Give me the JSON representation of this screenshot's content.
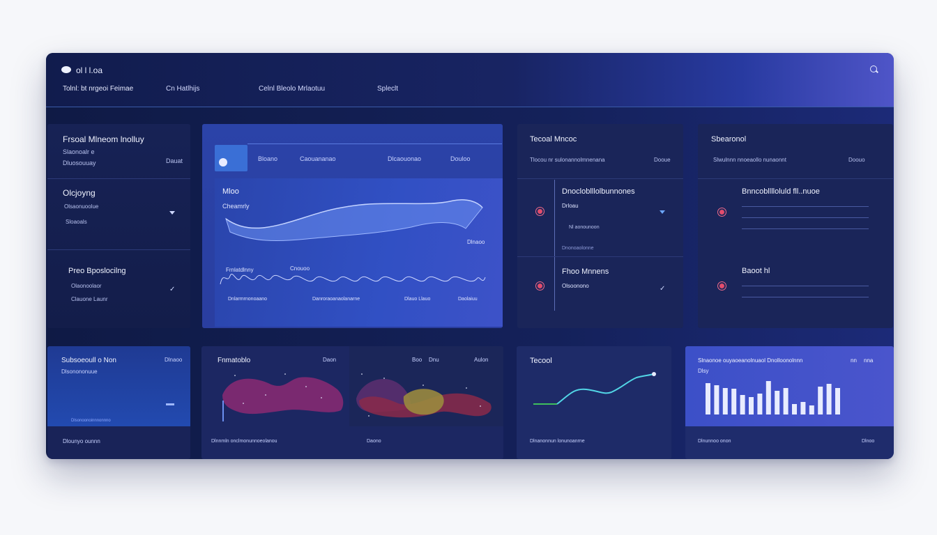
{
  "header": {
    "app_title": "ol l l.oa",
    "tabs": [
      "Tolnl: bt nrgeoi Feimae",
      "Cn Hatlhijs",
      "Celnl Bleolo Mrlaotuu",
      "Spleclt"
    ]
  },
  "panel_left": {
    "title": "Frsoal Mlneom lnolluy",
    "sub1": "Slaonoalr e",
    "sub2": "Dluosouuay",
    "sub2_right": "Dauat",
    "sec2_title": "Olcjoyng",
    "sec2_sub1": "Olsaonuoolue",
    "sec2_sub2": "Sloaoals",
    "sec3_title": "Preo  Bposlocilng",
    "sec3_sub1": "Olaonoolaor",
    "sec3_sub2": "Clauone Launr"
  },
  "panel_main": {
    "top_label1": "Bloano",
    "top_label2": "Caouananao",
    "top_label3": "Dlcaouonao",
    "top_label4": "Douloo",
    "chart_title": "Mloo",
    "chart_subtitle": "Cheamrly",
    "chart_right_label": "Dlnaoo",
    "bottom_label1": "Frnlatdlnny",
    "bottom_label2": "Cnouoo",
    "footer_labels": [
      "Dnlarmrnonoaano",
      "Danroraoanaolanarne",
      "Dlauo Llauo",
      "Daolaiuu"
    ]
  },
  "panel_tracked": {
    "title": "Tecoal Mncoc",
    "sub": "Tlocou nr  sulonannolmnenana",
    "sub_right": "Dooue",
    "row1_title": "Dnocloblllolbunnones",
    "row1_sub": "Drloau",
    "row1_meta": "Nl aonounoon",
    "row1_meta2": "Dnonoaolonne",
    "row2_title": "Fhoo Mnnens",
    "row2_sub": "Olsoonono"
  },
  "panel_search": {
    "title": "Sbearonol",
    "sub": "Slwulnnn nnoeaollo nunaonnt",
    "sub_right": "Doouo",
    "row1_title": "Bnncoblllloluld fll..nuoe",
    "row2_title": "Baoot hl"
  },
  "panel_subscriptions": {
    "title": "Subsoeoull o  Non",
    "right": "Dlnaoo",
    "sub": "Dlsonononuue",
    "inner_label": "Dlsonoonoinnnonnno",
    "footer": "Dlounyo ounnn"
  },
  "panel_heat": {
    "title": "Fnmatoblo",
    "right1": "Daon",
    "right2": "Boo",
    "right3": "Dnu",
    "right4": "Aulon",
    "footer1": "Dlnnmln onclmonunnoeolanou",
    "footer2": "Daono"
  },
  "panel_trend": {
    "title": "Tecool",
    "footer": "Dlnanonnun lonunoanrne"
  },
  "panel_bars": {
    "title": "Slnaonoe ouyaoeanolnuaol Dnolloonolnnn",
    "sub": "Dlsy",
    "right1": "nn",
    "right2": "nna",
    "footer": "Dlnunnoo onon",
    "footer_right": "Dlnoo"
  },
  "chart_data": {
    "type": "bar",
    "values": [
      45,
      42,
      38,
      37,
      28,
      25,
      30,
      48,
      34,
      38,
      15,
      18,
      13,
      40,
      44,
      38
    ],
    "ylim": [
      0,
      50
    ]
  },
  "colors": {
    "accent": "#5b63d6",
    "trend_line": "#52d6e6",
    "trend_start": "#3fbf5c",
    "heat_magenta": "#8b2a73",
    "heat_olive": "#9a8a3e"
  }
}
